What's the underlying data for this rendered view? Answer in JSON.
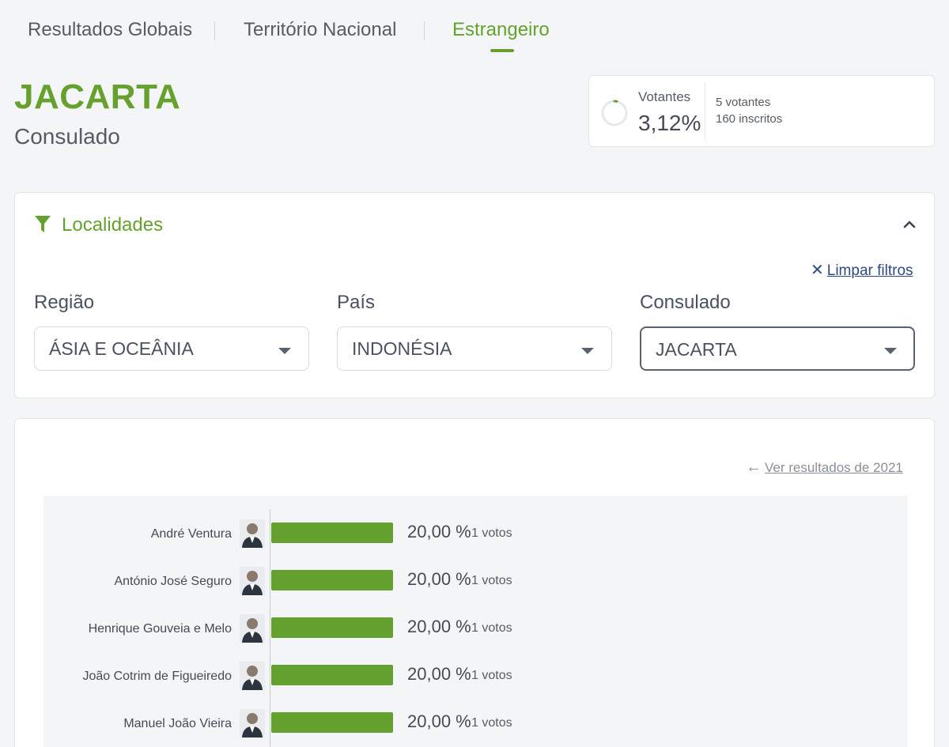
{
  "tabs": [
    {
      "label": "Resultados Globais",
      "active": false
    },
    {
      "label": "Território Nacional",
      "active": false
    },
    {
      "label": "Estrangeiro",
      "active": true
    }
  ],
  "header": {
    "title": "JACARTA",
    "subtitle": "Consulado"
  },
  "voters": {
    "label": "Votantes",
    "percent": "3,12%",
    "percent_value": 3.12,
    "count": "5 votantes",
    "registered": "160 inscritos"
  },
  "filters": {
    "title": "Localidades",
    "clear_label": "Limpar filtros",
    "fields": [
      {
        "label": "Região",
        "value": "ÁSIA E OCEÂNIA"
      },
      {
        "label": "País",
        "value": "INDONÉSIA"
      },
      {
        "label": "Consulado",
        "value": "JACARTA"
      }
    ]
  },
  "results": {
    "previous_link": "Ver resultados de 2021",
    "candidates": [
      {
        "name": "André Ventura",
        "percent": "20,00 %",
        "percent_value": 20.0,
        "votes": "1 votos"
      },
      {
        "name": "António José Seguro",
        "percent": "20,00 %",
        "percent_value": 20.0,
        "votes": "1 votos"
      },
      {
        "name": "Henrique Gouveia e Melo",
        "percent": "20,00 %",
        "percent_value": 20.0,
        "votes": "1 votos"
      },
      {
        "name": "João Cotrim de Figueiredo",
        "percent": "20,00 %",
        "percent_value": 20.0,
        "votes": "1 votos"
      },
      {
        "name": "Manuel João Vieira",
        "percent": "20,00 %",
        "percent_value": 20.0,
        "votes": "1 votos"
      }
    ]
  },
  "colors": {
    "accent": "#66a12e",
    "bar": "#64a12e",
    "link": "#2f4a7f"
  }
}
